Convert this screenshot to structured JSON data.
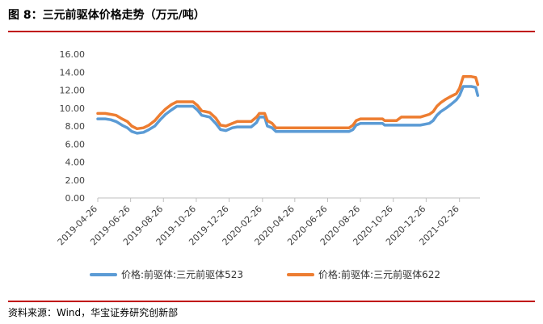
{
  "figure": {
    "title": "图 8：三元前驱体价格走势（万元/吨）",
    "source": "资料来源：Wind，华宝证券研究创新部",
    "rule_color": "#c00000"
  },
  "chart_data": {
    "type": "line",
    "title": "",
    "xlabel": "",
    "ylabel": "",
    "ylim": [
      0,
      16
    ],
    "yticks": [
      "0.00",
      "2.00",
      "4.00",
      "6.00",
      "8.00",
      "10.00",
      "12.00",
      "14.00",
      "16.00"
    ],
    "xlim": [
      "2019-04-26",
      "2021-04-05"
    ],
    "xticks": [
      "2019-04-26",
      "2019-06-26",
      "2019-08-26",
      "2019-10-26",
      "2019-12-26",
      "2020-02-26",
      "2020-04-26",
      "2020-06-26",
      "2020-08-26",
      "2020-10-26",
      "2020-12-26",
      "2021-02-26"
    ],
    "grid": false,
    "legend_position": "bottom",
    "series": [
      {
        "name": "价格:前驱体:三元前驱体523",
        "color": "#5b9bd5",
        "points": [
          [
            "2019-04-26",
            8.8
          ],
          [
            "2019-05-10",
            8.8
          ],
          [
            "2019-05-20",
            8.7
          ],
          [
            "2019-05-30",
            8.5
          ],
          [
            "2019-06-10",
            8.1
          ],
          [
            "2019-06-20",
            7.8
          ],
          [
            "2019-06-28",
            7.4
          ],
          [
            "2019-07-08",
            7.2
          ],
          [
            "2019-07-20",
            7.3
          ],
          [
            "2019-07-30",
            7.6
          ],
          [
            "2019-08-10",
            8.0
          ],
          [
            "2019-08-20",
            8.7
          ],
          [
            "2019-08-30",
            9.3
          ],
          [
            "2019-09-10",
            9.8
          ],
          [
            "2019-09-20",
            10.2
          ],
          [
            "2019-10-01",
            10.2
          ],
          [
            "2019-10-20",
            10.2
          ],
          [
            "2019-10-28",
            9.8
          ],
          [
            "2019-11-05",
            9.2
          ],
          [
            "2019-11-20",
            9.0
          ],
          [
            "2019-12-01",
            8.3
          ],
          [
            "2019-12-10",
            7.6
          ],
          [
            "2019-12-20",
            7.5
          ],
          [
            "2020-01-01",
            7.8
          ],
          [
            "2020-01-10",
            7.9
          ],
          [
            "2020-01-20",
            7.9
          ],
          [
            "2020-02-05",
            7.9
          ],
          [
            "2020-02-15",
            8.4
          ],
          [
            "2020-02-20",
            9.0
          ],
          [
            "2020-03-01",
            9.0
          ],
          [
            "2020-03-06",
            8.0
          ],
          [
            "2020-03-15",
            7.8
          ],
          [
            "2020-03-22",
            7.4
          ],
          [
            "2020-04-26",
            7.4
          ],
          [
            "2020-06-26",
            7.4
          ],
          [
            "2020-08-05",
            7.4
          ],
          [
            "2020-08-12",
            7.6
          ],
          [
            "2020-08-18",
            8.1
          ],
          [
            "2020-08-26",
            8.3
          ],
          [
            "2020-10-06",
            8.3
          ],
          [
            "2020-10-10",
            8.1
          ],
          [
            "2020-11-20",
            8.1
          ],
          [
            "2020-12-15",
            8.1
          ],
          [
            "2021-01-01",
            8.3
          ],
          [
            "2021-01-08",
            8.6
          ],
          [
            "2021-01-15",
            9.2
          ],
          [
            "2021-01-22",
            9.6
          ],
          [
            "2021-02-01",
            10.0
          ],
          [
            "2021-02-10",
            10.4
          ],
          [
            "2021-02-20",
            10.9
          ],
          [
            "2021-02-26",
            11.4
          ],
          [
            "2021-03-05",
            12.4
          ],
          [
            "2021-03-20",
            12.4
          ],
          [
            "2021-03-28",
            12.3
          ],
          [
            "2021-04-01",
            11.4
          ]
        ]
      },
      {
        "name": "价格:前驱体:三元前驱体622",
        "color": "#ed7d31",
        "points": [
          [
            "2019-04-26",
            9.4
          ],
          [
            "2019-05-10",
            9.4
          ],
          [
            "2019-05-20",
            9.3
          ],
          [
            "2019-05-30",
            9.2
          ],
          [
            "2019-06-10",
            8.8
          ],
          [
            "2019-06-20",
            8.5
          ],
          [
            "2019-06-28",
            8.0
          ],
          [
            "2019-07-08",
            7.7
          ],
          [
            "2019-07-20",
            7.8
          ],
          [
            "2019-07-30",
            8.1
          ],
          [
            "2019-08-10",
            8.6
          ],
          [
            "2019-08-20",
            9.3
          ],
          [
            "2019-08-30",
            9.9
          ],
          [
            "2019-09-10",
            10.4
          ],
          [
            "2019-09-20",
            10.7
          ],
          [
            "2019-10-01",
            10.7
          ],
          [
            "2019-10-20",
            10.7
          ],
          [
            "2019-10-28",
            10.3
          ],
          [
            "2019-11-05",
            9.7
          ],
          [
            "2019-11-20",
            9.5
          ],
          [
            "2019-12-01",
            8.9
          ],
          [
            "2019-12-10",
            8.1
          ],
          [
            "2019-12-20",
            8.0
          ],
          [
            "2020-01-01",
            8.3
          ],
          [
            "2020-01-10",
            8.5
          ],
          [
            "2020-01-20",
            8.5
          ],
          [
            "2020-02-05",
            8.5
          ],
          [
            "2020-02-15",
            9.0
          ],
          [
            "2020-02-20",
            9.4
          ],
          [
            "2020-03-01",
            9.4
          ],
          [
            "2020-03-06",
            8.6
          ],
          [
            "2020-03-15",
            8.3
          ],
          [
            "2020-03-22",
            7.8
          ],
          [
            "2020-04-26",
            7.8
          ],
          [
            "2020-06-26",
            7.8
          ],
          [
            "2020-08-05",
            7.8
          ],
          [
            "2020-08-12",
            8.1
          ],
          [
            "2020-08-18",
            8.6
          ],
          [
            "2020-08-26",
            8.8
          ],
          [
            "2020-10-06",
            8.8
          ],
          [
            "2020-10-10",
            8.6
          ],
          [
            "2020-11-01",
            8.6
          ],
          [
            "2020-11-10",
            9.0
          ],
          [
            "2020-12-15",
            9.0
          ],
          [
            "2021-01-01",
            9.3
          ],
          [
            "2021-01-08",
            9.6
          ],
          [
            "2021-01-15",
            10.2
          ],
          [
            "2021-01-22",
            10.6
          ],
          [
            "2021-02-01",
            11.0
          ],
          [
            "2021-02-10",
            11.3
          ],
          [
            "2021-02-20",
            11.6
          ],
          [
            "2021-02-26",
            12.2
          ],
          [
            "2021-03-05",
            13.5
          ],
          [
            "2021-03-20",
            13.5
          ],
          [
            "2021-03-28",
            13.4
          ],
          [
            "2021-04-01",
            12.6
          ]
        ]
      }
    ]
  }
}
